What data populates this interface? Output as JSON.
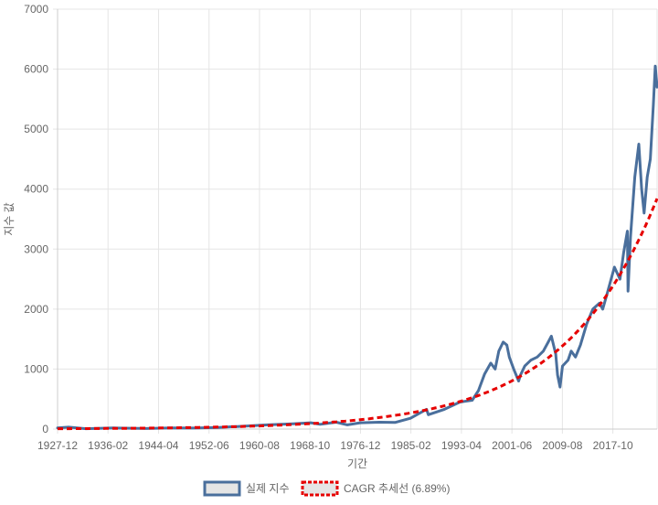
{
  "chart_data": {
    "type": "line",
    "xlabel": "기간",
    "ylabel": "지수 값",
    "ylim": [
      0,
      7000
    ],
    "yticks": [
      0,
      1000,
      2000,
      3000,
      4000,
      5000,
      6000,
      7000
    ],
    "xlim": [
      1927.92,
      2024.9
    ],
    "xticks": [
      {
        "label": "1927-12",
        "x": 1927.92
      },
      {
        "label": "1936-02",
        "x": 1936.08
      },
      {
        "label": "1944-04",
        "x": 1944.25
      },
      {
        "label": "1952-06",
        "x": 1952.42
      },
      {
        "label": "1960-08",
        "x": 1960.58
      },
      {
        "label": "1968-10",
        "x": 1968.75
      },
      {
        "label": "1976-12",
        "x": 1976.92
      },
      {
        "label": "1985-02",
        "x": 1985.08
      },
      {
        "label": "1993-04",
        "x": 1993.25
      },
      {
        "label": "2001-06",
        "x": 2001.42
      },
      {
        "label": "2009-08",
        "x": 2009.58
      },
      {
        "label": "2017-10",
        "x": 2017.75
      }
    ],
    "grid": true,
    "legend_position": "bottom",
    "series": [
      {
        "name": "실제 지수",
        "color": "#4a6f9c",
        "style": "solid",
        "x": [
          1927.92,
          1929.7,
          1932.5,
          1937.0,
          1942.3,
          1946.3,
          1950.0,
          1954.0,
          1957.0,
          1961.9,
          1966.0,
          1968.9,
          1970.4,
          1973.0,
          1974.8,
          1976.9,
          1980.0,
          1982.5,
          1985.0,
          1987.6,
          1987.9,
          1990.5,
          1993.0,
          1995.0,
          1996.0,
          1997.0,
          1998.0,
          1998.7,
          1999.3,
          2000.0,
          2000.6,
          2001.0,
          2001.7,
          2002.5,
          2002.8,
          2003.5,
          2004.5,
          2005.5,
          2006.5,
          2007.3,
          2007.8,
          2008.5,
          2008.8,
          2009.2,
          2009.6,
          2010.5,
          2011.0,
          2011.7,
          2012.5,
          2013.5,
          2014.5,
          2015.6,
          2016.1,
          2016.8,
          2018.0,
          2018.9,
          2019.5,
          2020.1,
          2020.2,
          2020.6,
          2021.3,
          2021.95,
          2022.4,
          2022.8,
          2023.3,
          2023.8,
          2024.3,
          2024.6,
          2024.9
        ],
        "y": [
          18,
          32,
          6,
          18,
          9,
          18,
          17,
          28,
          42,
          70,
          87,
          105,
          80,
          115,
          70,
          105,
          115,
          110,
          180,
          330,
          240,
          330,
          450,
          480,
          640,
          920,
          1100,
          1000,
          1300,
          1450,
          1400,
          1200,
          1000,
          800,
          900,
          1050,
          1150,
          1200,
          1300,
          1450,
          1550,
          1250,
          900,
          700,
          1050,
          1150,
          1300,
          1200,
          1400,
          1750,
          2000,
          2100,
          2000,
          2250,
          2700,
          2500,
          2950,
          3300,
          2300,
          3200,
          4200,
          4750,
          4000,
          3600,
          4200,
          4500,
          5400,
          6050,
          5700
        ]
      },
      {
        "name": "CAGR 추세선 (6.89%)",
        "color": "#e60000",
        "style": "dashed",
        "cagr": 0.0689,
        "start_value": 6
      }
    ]
  }
}
